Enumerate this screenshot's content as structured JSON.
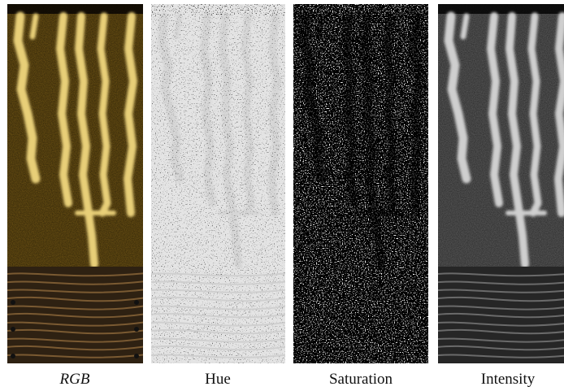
{
  "figure": {
    "panels": [
      {
        "label": "RGB"
      },
      {
        "label": "Hue"
      },
      {
        "label": "Saturation"
      },
      {
        "label": "Intensity"
      }
    ]
  }
}
